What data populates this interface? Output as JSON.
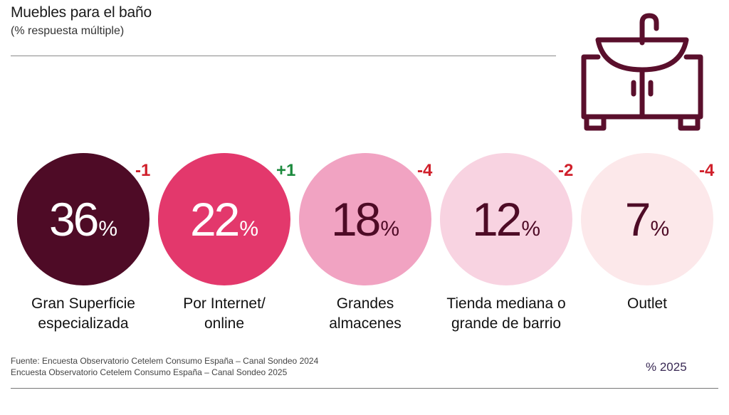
{
  "header": {
    "title": "Muebles para el baño",
    "subtitle": "(% respuesta múltiple)"
  },
  "chart_data": {
    "type": "bubble",
    "title": "Muebles para el baño",
    "subtitle": "(% respuesta múltiple)",
    "unit": "%",
    "series_name": "% 2025",
    "categories": [
      "Gran Superficie especializada",
      "Por Internet/ online",
      "Grandes almacenes",
      "Tienda mediana o grande de barrio",
      "Outlet"
    ],
    "values": [
      36,
      22,
      18,
      12,
      7
    ],
    "change_vs_2024": [
      "-1",
      "+1",
      "-4",
      "-2",
      "-4"
    ]
  },
  "items": [
    {
      "value": "36",
      "unit": "%",
      "delta": "-1",
      "label_line1": "Gran Superficie",
      "label_line2": "especializada",
      "fill": "#4e0b26",
      "text_color": "#ffffff",
      "delta_color": "#d0202b"
    },
    {
      "value": "22",
      "unit": "%",
      "delta": "+1",
      "label_line1": "Por Internet/",
      "label_line2": "online",
      "fill": "#e3386c",
      "text_color": "#ffffff",
      "delta_color": "#1c8a3e"
    },
    {
      "value": "18",
      "unit": "%",
      "delta": "-4",
      "label_line1": "Grandes",
      "label_line2": "almacenes",
      "fill": "#f1a3c2",
      "text_color": "#4e0b26",
      "delta_color": "#d0202b"
    },
    {
      "value": "12",
      "unit": "%",
      "delta": "-2",
      "label_line1": "Tienda mediana o",
      "label_line2": "grande de barrio",
      "fill": "#f8d3e1",
      "text_color": "#4e0b26",
      "delta_color": "#d0202b"
    },
    {
      "value": "7",
      "unit": "%",
      "delta": "-4",
      "label_line1": "Outlet",
      "label_line2": "",
      "fill": "#fce8ea",
      "text_color": "#4e0b26",
      "delta_color": "#d0202b"
    }
  ],
  "footer": {
    "source_line1": "Fuente: Encuesta Observatorio Cetelem Consumo España – Canal Sondeo 2024",
    "source_line2": "Encuesta Observatorio Cetelem Consumo España – Canal Sondeo 2025",
    "legend": "% 2025"
  },
  "icon": "bathroom-sink-cabinet-icon",
  "icon_color": "#5a0f2c"
}
